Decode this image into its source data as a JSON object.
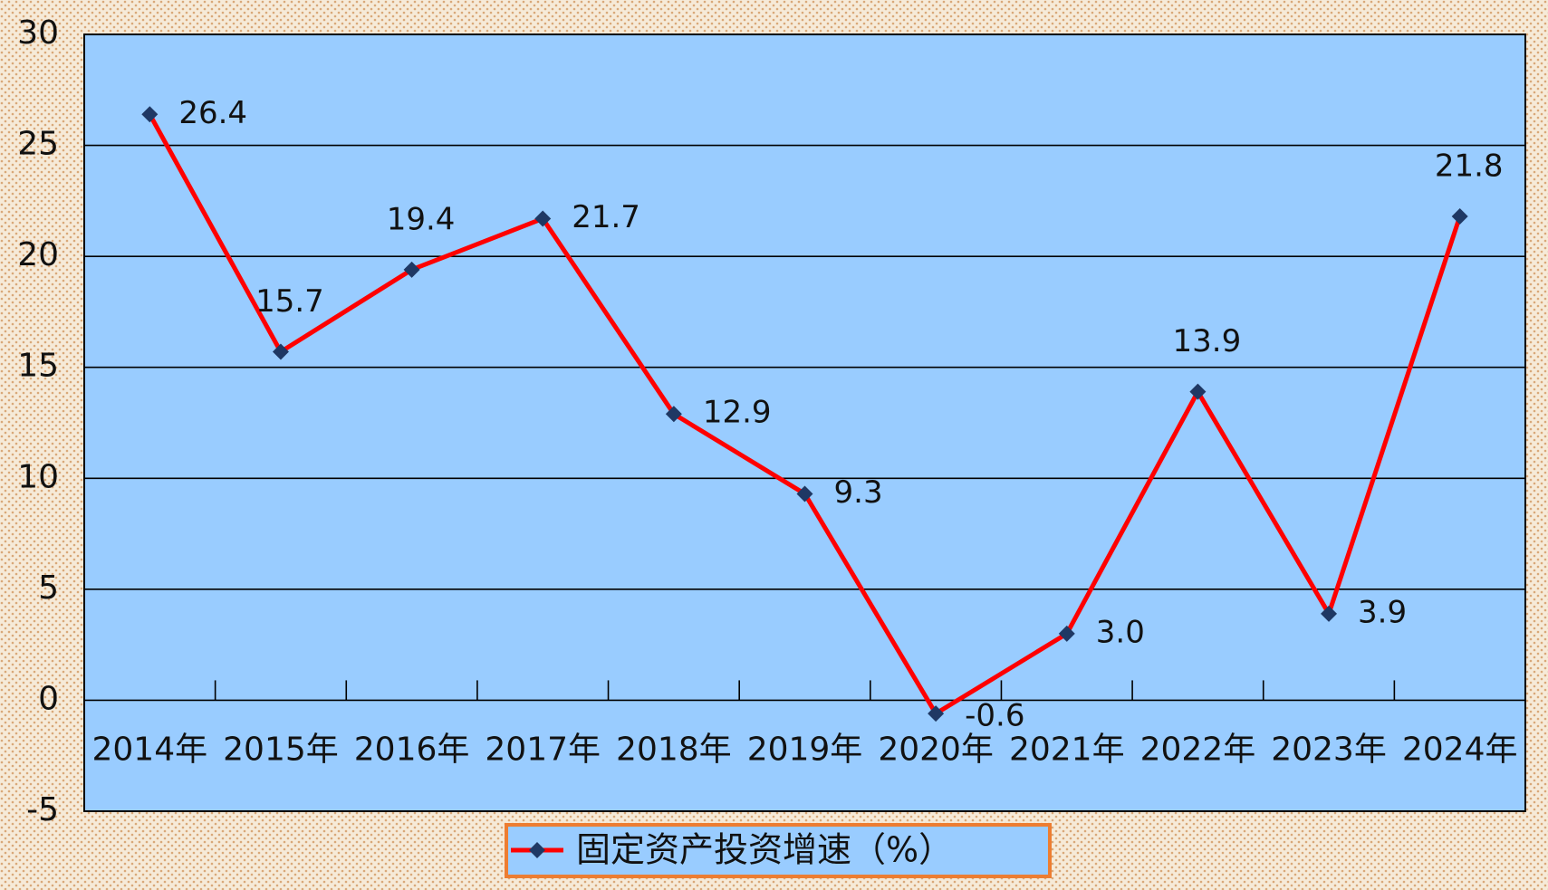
{
  "chart_data": {
    "type": "line",
    "categories": [
      "2014年",
      "2015年",
      "2016年",
      "2017年",
      "2018年",
      "2019年",
      "2020年",
      "2021年",
      "2022年",
      "2023年",
      "2024年"
    ],
    "series": [
      {
        "name": "固定资产投资增速（%）",
        "color": "#ff0000",
        "marker_color": "#1f3864",
        "values": [
          26.4,
          15.7,
          19.4,
          21.7,
          12.9,
          9.3,
          -0.6,
          3,
          13.9,
          3.9,
          21.8
        ],
        "value_labels": [
          "26.4",
          "15.7",
          "19.4",
          "21.7",
          "12.9",
          "9.3",
          "-0.6",
          "3.0",
          "13.9",
          "3.9",
          "21.8"
        ]
      }
    ],
    "ylim": [
      -5,
      30
    ],
    "yticks": [
      -5,
      0,
      5,
      10,
      15,
      20,
      25,
      30
    ],
    "grid": true,
    "legend": "bottom"
  }
}
